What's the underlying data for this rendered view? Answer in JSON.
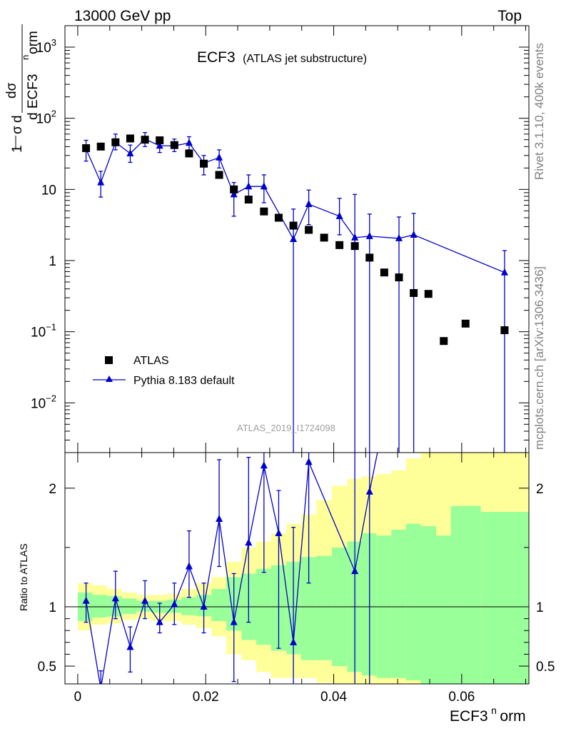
{
  "header": {
    "left": "13000 GeV pp",
    "right": "Top"
  },
  "side": {
    "rivet": "Rivet 3.1.10,  400k events",
    "mcplots": "mcplots.cern.ch [arXiv:1306.3436]"
  },
  "colors": {
    "data": "#000000",
    "mc": "#0000cc",
    "band_inner": "#99ff99",
    "band_outer": "#ffff99"
  },
  "chart_data": [
    {
      "type": "scatter",
      "title": "ECF3",
      "subtitle": "(ATLAS jet substructure)",
      "ylabel_parts": [
        "1",
        "σ",
        "dσ",
        "d ECF3",
        "n",
        "orm"
      ],
      "yscale": "log",
      "ylim": [
        0.002,
        2000
      ],
      "xlim": [
        -0.002,
        0.0705
      ],
      "yticks": [
        {
          "v": 0.01,
          "base": "10",
          "exp": "−2"
        },
        {
          "v": 0.1,
          "base": "10",
          "exp": "−1"
        },
        {
          "v": 1,
          "base": "1",
          "exp": ""
        },
        {
          "v": 10,
          "base": "10",
          "exp": ""
        },
        {
          "v": 100,
          "base": "10",
          "exp": "2"
        },
        {
          "v": 1000,
          "base": "10",
          "exp": "3"
        }
      ],
      "legend": [
        "ATLAS",
        "Pythia 8.183 default"
      ],
      "watermark": "ATLAS_2019_I1724098",
      "series": [
        {
          "name": "ATLAS",
          "x": [
            0.0013,
            0.0036,
            0.0059,
            0.0082,
            0.0105,
            0.0128,
            0.0151,
            0.0174,
            0.0197,
            0.0221,
            0.0244,
            0.0267,
            0.0291,
            0.0314,
            0.0337,
            0.0361,
            0.0385,
            0.0409,
            0.0433,
            0.0456,
            0.0479,
            0.0502,
            0.0525,
            0.0548,
            0.0572,
            0.0606,
            0.0667
          ],
          "y": [
            38,
            40,
            46,
            52,
            50,
            49,
            42,
            32,
            23,
            16,
            10,
            7.2,
            4.9,
            4.0,
            3.1,
            2.7,
            2.1,
            1.65,
            1.6,
            1.1,
            0.68,
            0.58,
            0.35,
            0.34,
            0.074,
            0.13,
            0.105
          ]
        },
        {
          "name": "Pythia 8.183 default",
          "x": [
            0.0013,
            0.0036,
            0.0059,
            0.0082,
            0.0105,
            0.0128,
            0.0151,
            0.0174,
            0.0197,
            0.0221,
            0.0244,
            0.0267,
            0.0291,
            0.0337,
            0.0361,
            0.0409,
            0.0433,
            0.0456,
            0.0502,
            0.0525,
            0.0667
          ],
          "y": [
            37,
            12.5,
            46,
            32,
            51,
            41,
            41,
            45,
            23.5,
            28,
            8.5,
            11,
            11,
            2.0,
            6.2,
            4.2,
            2.1,
            2.2,
            2.05,
            2.3,
            0.68
          ],
          "err_low": [
            25,
            7.8,
            36,
            24,
            40,
            33,
            34,
            36,
            16,
            20,
            4.2,
            6.5,
            6.5,
            0.001,
            3.2,
            2.3,
            0.001,
            0.001,
            0.001,
            0.001,
            0.001
          ],
          "err_high": [
            49,
            18,
            60,
            42,
            63,
            52,
            51,
            55,
            30,
            36,
            12.5,
            16,
            16,
            5.3,
            9.8,
            7.5,
            8.5,
            4.5,
            4.1,
            4.6,
            1.38
          ]
        }
      ]
    },
    {
      "type": "scatter",
      "ylabel": "Ratio to ATLAS",
      "xlabel_base": "ECF3",
      "xlabel_sup": "n",
      "xlabel_tail": "orm",
      "ylim": [
        0.35,
        2.3
      ],
      "xlim": [
        -0.002,
        0.0705
      ],
      "xticks": [
        {
          "v": 0,
          "label": "0"
        },
        {
          "v": 0.02,
          "label": "0.02"
        },
        {
          "v": 0.04,
          "label": "0.04"
        },
        {
          "v": 0.06,
          "label": "0.06"
        }
      ],
      "yticks": [
        {
          "v": 0.5,
          "label": "0.5"
        },
        {
          "v": 1,
          "label": "1"
        },
        {
          "v": 2,
          "label": "2"
        }
      ],
      "bands": {
        "edges": [
          0,
          0.0023,
          0.0046,
          0.0069,
          0.0092,
          0.0115,
          0.0139,
          0.0162,
          0.0185,
          0.0209,
          0.0232,
          0.0256,
          0.0279,
          0.0302,
          0.0326,
          0.0349,
          0.0373,
          0.0397,
          0.0421,
          0.0444,
          0.0467,
          0.049,
          0.0513,
          0.0536,
          0.056,
          0.0583,
          0.063,
          0.0705
        ],
        "inner_lo": [
          0.88,
          0.91,
          0.92,
          0.94,
          0.96,
          0.95,
          0.95,
          0.93,
          0.92,
          0.88,
          0.8,
          0.72,
          0.68,
          0.63,
          0.6,
          0.55,
          0.55,
          0.5,
          0.45,
          0.42,
          0.4,
          0.4,
          0.38,
          0.3,
          0.3,
          0.3,
          0.3
        ],
        "inner_hi": [
          1.12,
          1.1,
          1.09,
          1.07,
          1.05,
          1.05,
          1.06,
          1.08,
          1.1,
          1.15,
          1.25,
          1.28,
          1.32,
          1.35,
          1.38,
          1.42,
          1.43,
          1.5,
          1.55,
          1.62,
          1.6,
          1.65,
          1.7,
          1.68,
          1.6,
          1.85,
          1.8
        ],
        "outer_lo": [
          0.8,
          0.85,
          0.86,
          0.89,
          0.9,
          0.88,
          0.88,
          0.85,
          0.82,
          0.75,
          0.6,
          0.55,
          0.45,
          0.4,
          0.4,
          0.4,
          0.36,
          0.35,
          0.35,
          0.35,
          0.35,
          0.35,
          0.35,
          0.35,
          0.35,
          0.35,
          0.35
        ],
        "outer_hi": [
          1.2,
          1.18,
          1.15,
          1.12,
          1.1,
          1.1,
          1.11,
          1.15,
          1.2,
          1.25,
          1.38,
          1.5,
          1.55,
          1.62,
          1.7,
          1.78,
          1.9,
          2.02,
          2.08,
          2.1,
          2.12,
          2.15,
          2.25,
          2.3,
          2.3,
          2.3,
          2.3
        ]
      },
      "series": [
        {
          "name": "Pythia 8.183 default",
          "x": [
            0.0013,
            0.0036,
            0.0059,
            0.0082,
            0.0105,
            0.0128,
            0.0151,
            0.0174,
            0.0197,
            0.0221,
            0.0244,
            0.0267,
            0.0291,
            0.0314,
            0.0337,
            0.0361,
            0.0433,
            0.0456
          ],
          "y": [
            1.05,
            0.31,
            1.07,
            0.66,
            1.05,
            0.87,
            1.02,
            1.34,
            1.0,
            1.74,
            0.87,
            1.54,
            2.19,
            1.62,
            0.7,
            2.22,
            1.3,
            1.97
          ],
          "err_low": [
            0.87,
            0.25,
            0.9,
            0.45,
            0.9,
            0.78,
            0.85,
            1.08,
            0.78,
            1.34,
            0.37,
            0.87,
            1.29,
            0.65,
            0.2,
            1.2,
            0.1,
            0.1
          ],
          "err_high": [
            1.2,
            0.46,
            1.3,
            0.83,
            1.22,
            1.03,
            1.2,
            1.64,
            1.2,
            2.24,
            1.28,
            2.26,
            3.0,
            1.98,
            1.67,
            3.6,
            5.0,
            4.0
          ]
        }
      ]
    }
  ]
}
